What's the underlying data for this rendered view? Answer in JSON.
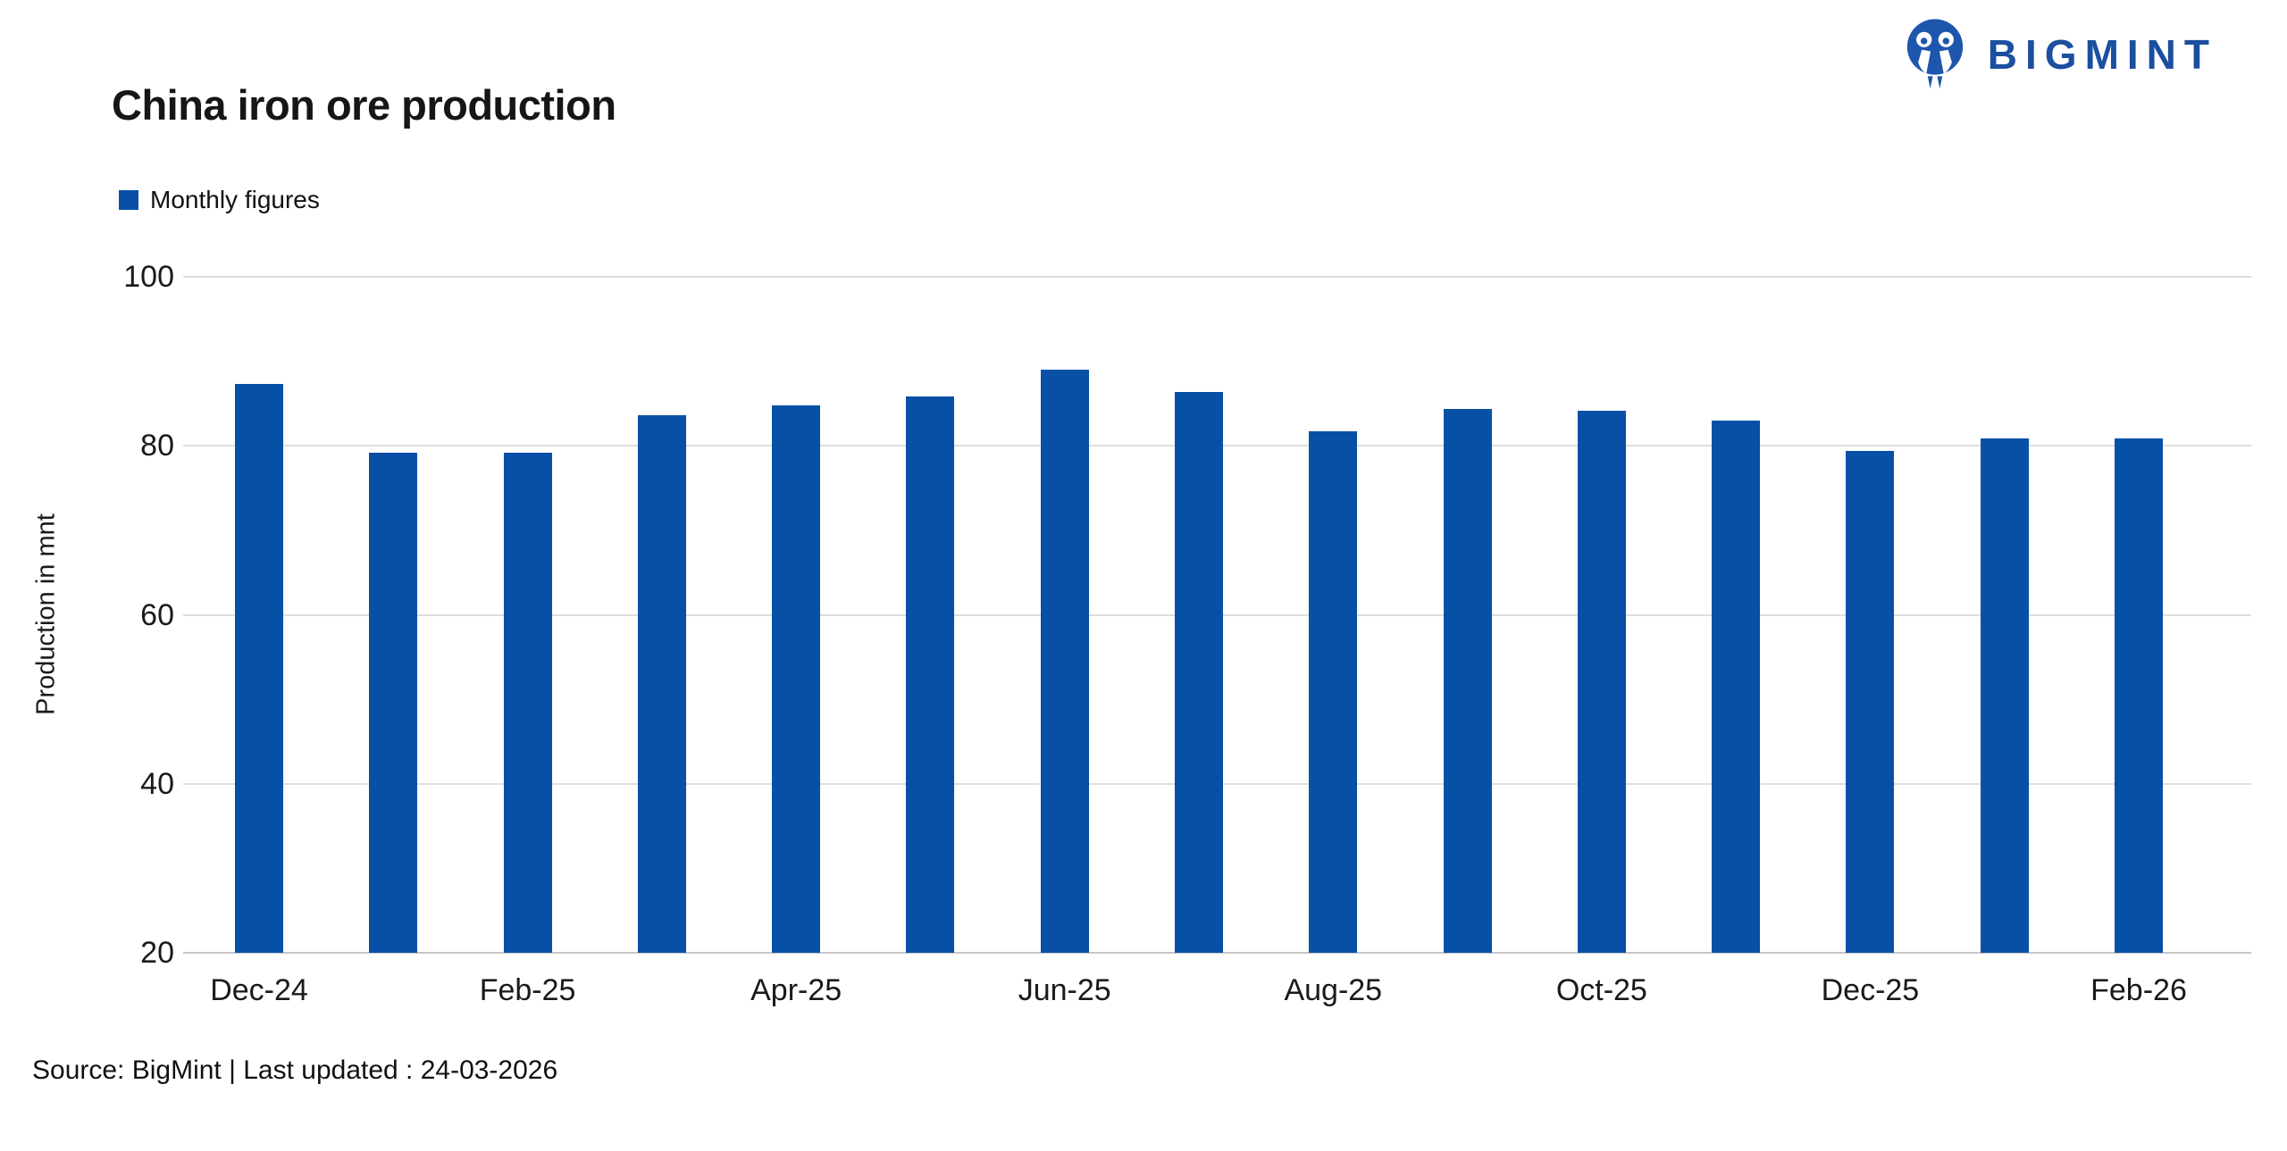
{
  "header": {
    "title": "China iron ore production",
    "brand_name": "BIGMINT"
  },
  "legend": {
    "label": "Monthly figures"
  },
  "footer": {
    "source": "Source: BigMint | Last updated : 24-03-2026"
  },
  "colors": {
    "bar": "#0750a6",
    "brand": "#1b4f9f",
    "gridline": "#dedede",
    "axis_line": "#c6c6c6"
  },
  "chart_data": {
    "type": "bar",
    "title": "China iron ore production",
    "series_name": "Monthly figures",
    "xlabel": "",
    "ylabel": "Production in mnt",
    "ylim": [
      20,
      100
    ],
    "yticks": [
      20,
      40,
      60,
      80,
      100
    ],
    "grid": true,
    "legend_position": "top-left",
    "categories": [
      "Dec-24",
      "Jan-25",
      "Feb-25",
      "Mar-25",
      "Apr-25",
      "May-25",
      "Jun-25",
      "Jul-25",
      "Aug-25",
      "Sep-25",
      "Oct-25",
      "Nov-25",
      "Dec-25",
      "Jan-26",
      "Feb-26"
    ],
    "x_tick_labels": [
      "Dec-24",
      "Feb-25",
      "Apr-25",
      "Jun-25",
      "Aug-25",
      "Oct-25",
      "Dec-25",
      "Feb-26"
    ],
    "x_tick_every": 2,
    "values": [
      87.3,
      79.2,
      79.2,
      83.6,
      84.8,
      85.8,
      89.0,
      86.4,
      81.7,
      84.4,
      84.2,
      83.0,
      79.4,
      80.9,
      80.9
    ]
  }
}
